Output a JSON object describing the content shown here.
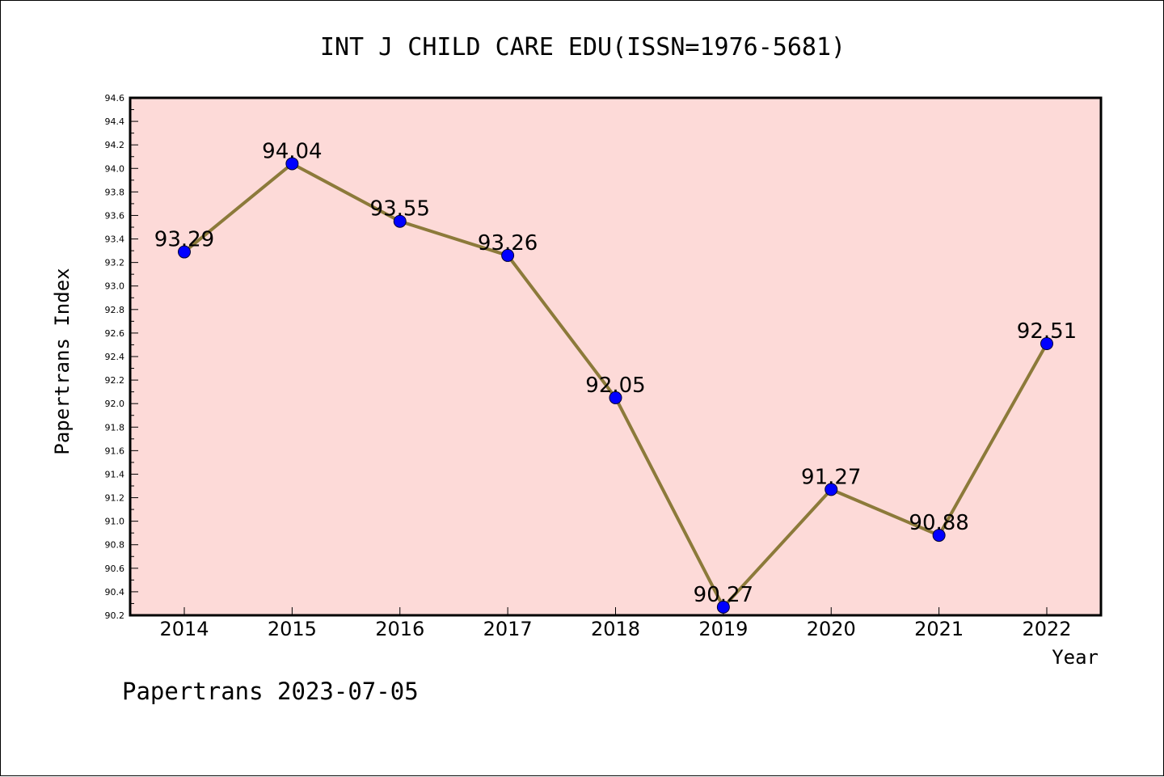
{
  "chart_data": {
    "type": "line",
    "title": "INT J CHILD CARE EDU(ISSN=1976-5681)",
    "xlabel": "Year",
    "ylabel": "Papertrans Index",
    "categories": [
      "2014",
      "2015",
      "2016",
      "2017",
      "2018",
      "2019",
      "2020",
      "2021",
      "2022"
    ],
    "values": [
      93.29,
      94.04,
      93.55,
      93.26,
      92.05,
      90.27,
      91.27,
      90.88,
      92.51
    ],
    "data_labels": [
      "93.29",
      "94.04",
      "93.55",
      "93.26",
      "92.05",
      "90.27",
      "91.27",
      "90.88",
      "92.51"
    ],
    "ylim": [
      90.2,
      94.6
    ],
    "yticks": [
      "90.2",
      "90.4",
      "90.6",
      "90.8",
      "91.0",
      "91.2",
      "91.4",
      "91.6",
      "91.8",
      "92.0",
      "92.2",
      "92.4",
      "92.6",
      "92.8",
      "93.0",
      "93.2",
      "93.4",
      "93.6",
      "93.8",
      "94.0",
      "94.2",
      "94.4",
      "94.6"
    ],
    "grid": false,
    "legend": "none",
    "colors": {
      "plot_background": "#fddad8",
      "line": "#8c7a3a",
      "marker": "#0000ff"
    }
  },
  "footer": {
    "text": "Papertrans 2023-07-05"
  }
}
